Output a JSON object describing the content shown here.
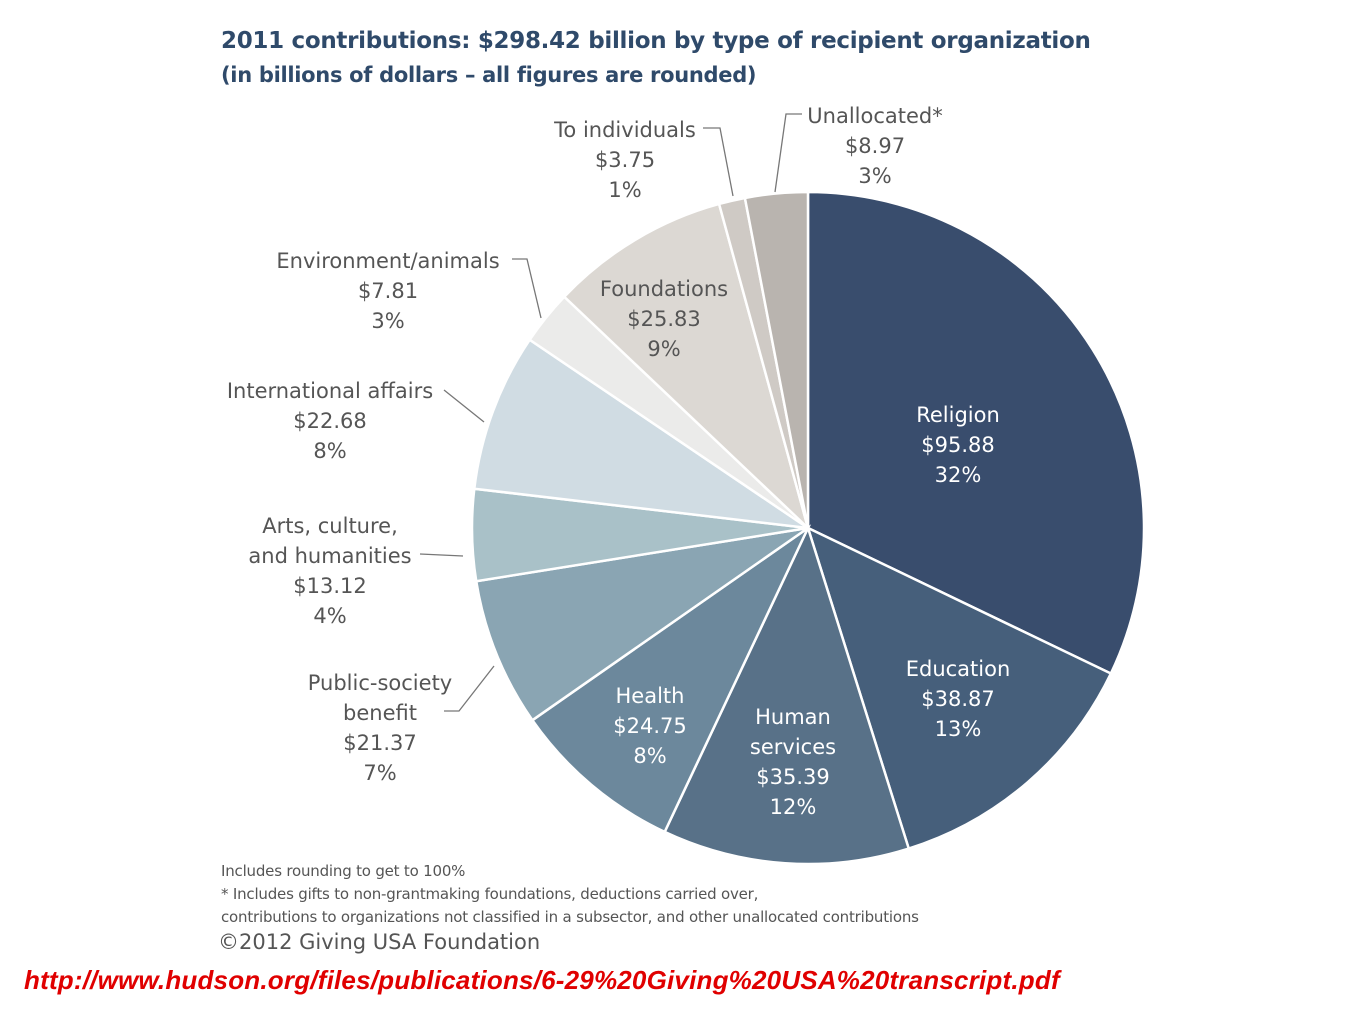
{
  "chart_data": {
    "type": "pie",
    "title": "2011 contributions: $298.42 billion by type of recipient organization",
    "subtitle": "(in billions of dollars – all figures are rounded)",
    "unit": "billions of dollars",
    "total": 298.42,
    "slices": [
      {
        "name_lines": [
          "Religion"
        ],
        "value": 95.88,
        "value_label": "$95.88",
        "percent_label": "32%",
        "color": "#394d6d"
      },
      {
        "name_lines": [
          "Education"
        ],
        "value": 38.87,
        "value_label": "$38.87",
        "percent_label": "13%",
        "color": "#465f7b"
      },
      {
        "name_lines": [
          "Human",
          "services"
        ],
        "value": 35.39,
        "value_label": "$35.39",
        "percent_label": "12%",
        "color": "#587188"
      },
      {
        "name_lines": [
          "Health"
        ],
        "value": 24.75,
        "value_label": "$24.75",
        "percent_label": "8%",
        "color": "#6c889c"
      },
      {
        "name_lines": [
          "Public-society",
          "benefit"
        ],
        "value": 21.37,
        "value_label": "$21.37",
        "percent_label": "7%",
        "color": "#8aa5b3"
      },
      {
        "name_lines": [
          "Arts, culture,",
          "and humanities"
        ],
        "value": 13.12,
        "value_label": "$13.12",
        "percent_label": "4%",
        "color": "#a9c1c8"
      },
      {
        "name_lines": [
          "International affairs"
        ],
        "value": 22.68,
        "value_label": "$22.68",
        "percent_label": "8%",
        "color": "#d0dce3"
      },
      {
        "name_lines": [
          "Environment/animals"
        ],
        "value": 7.81,
        "value_label": "$7.81",
        "percent_label": "3%",
        "color": "#ebebea"
      },
      {
        "name_lines": [
          "Foundations"
        ],
        "value": 25.83,
        "value_label": "$25.83",
        "percent_label": "9%",
        "color": "#dcd8d3"
      },
      {
        "name_lines": [
          "To individuals"
        ],
        "value": 3.75,
        "value_label": "$3.75",
        "percent_label": "1%",
        "color": "#cfcac5"
      },
      {
        "name_lines": [
          "Unallocated*"
        ],
        "value": 8.97,
        "value_label": "$8.97",
        "percent_label": "3%",
        "color": "#b9b4af"
      }
    ],
    "start_angle": "12 o'clock",
    "direction": "clockwise"
  },
  "notes": {
    "rounding": "Includes rounding to get to 100%",
    "footnote_line1": "* Includes gifts to non-grantmaking foundations, deductions carried over,",
    "footnote_line2": "contributions to organizations not classified in a subsector, and other unallocated contributions",
    "copyright": "©2012 Giving USA Foundation"
  },
  "source_url": "http://www.hudson.org/files/publications/6-29%20Giving%20USA%20transcript.pdf"
}
